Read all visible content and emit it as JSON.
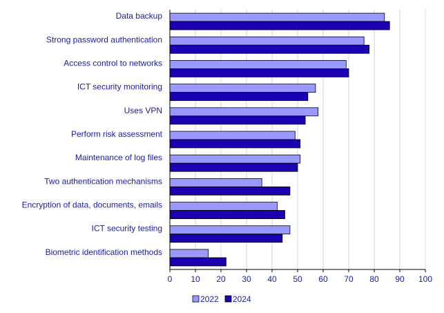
{
  "chart_data": {
    "type": "bar",
    "orientation": "horizontal",
    "title": "",
    "xlabel": "",
    "ylabel": "",
    "categories": [
      "Data backup",
      "Strong password authentication",
      "Access control to networks",
      "ICT security monitoring",
      "Uses VPN",
      "Perform risk assessment",
      "Maintenance of log files",
      "Two authentication mechanisms",
      "Encryption of data, documents, emails",
      "ICT security testing",
      "Biometric identification methods"
    ],
    "series": [
      {
        "name": "2022",
        "color": "#9999ff",
        "values": [
          84,
          76,
          69,
          57,
          58,
          49,
          51,
          36,
          42,
          47,
          15
        ]
      },
      {
        "name": "2024",
        "color": "#1a00b0",
        "values": [
          86,
          78,
          70,
          54,
          53,
          51,
          50,
          47,
          45,
          44,
          22
        ]
      }
    ],
    "xlim": [
      0,
      100
    ],
    "xticks": [
      "0",
      "10",
      "20",
      "30",
      "40",
      "50",
      "60",
      "70",
      "80",
      "90",
      "100"
    ],
    "grid": true,
    "legend_position": "bottom"
  }
}
